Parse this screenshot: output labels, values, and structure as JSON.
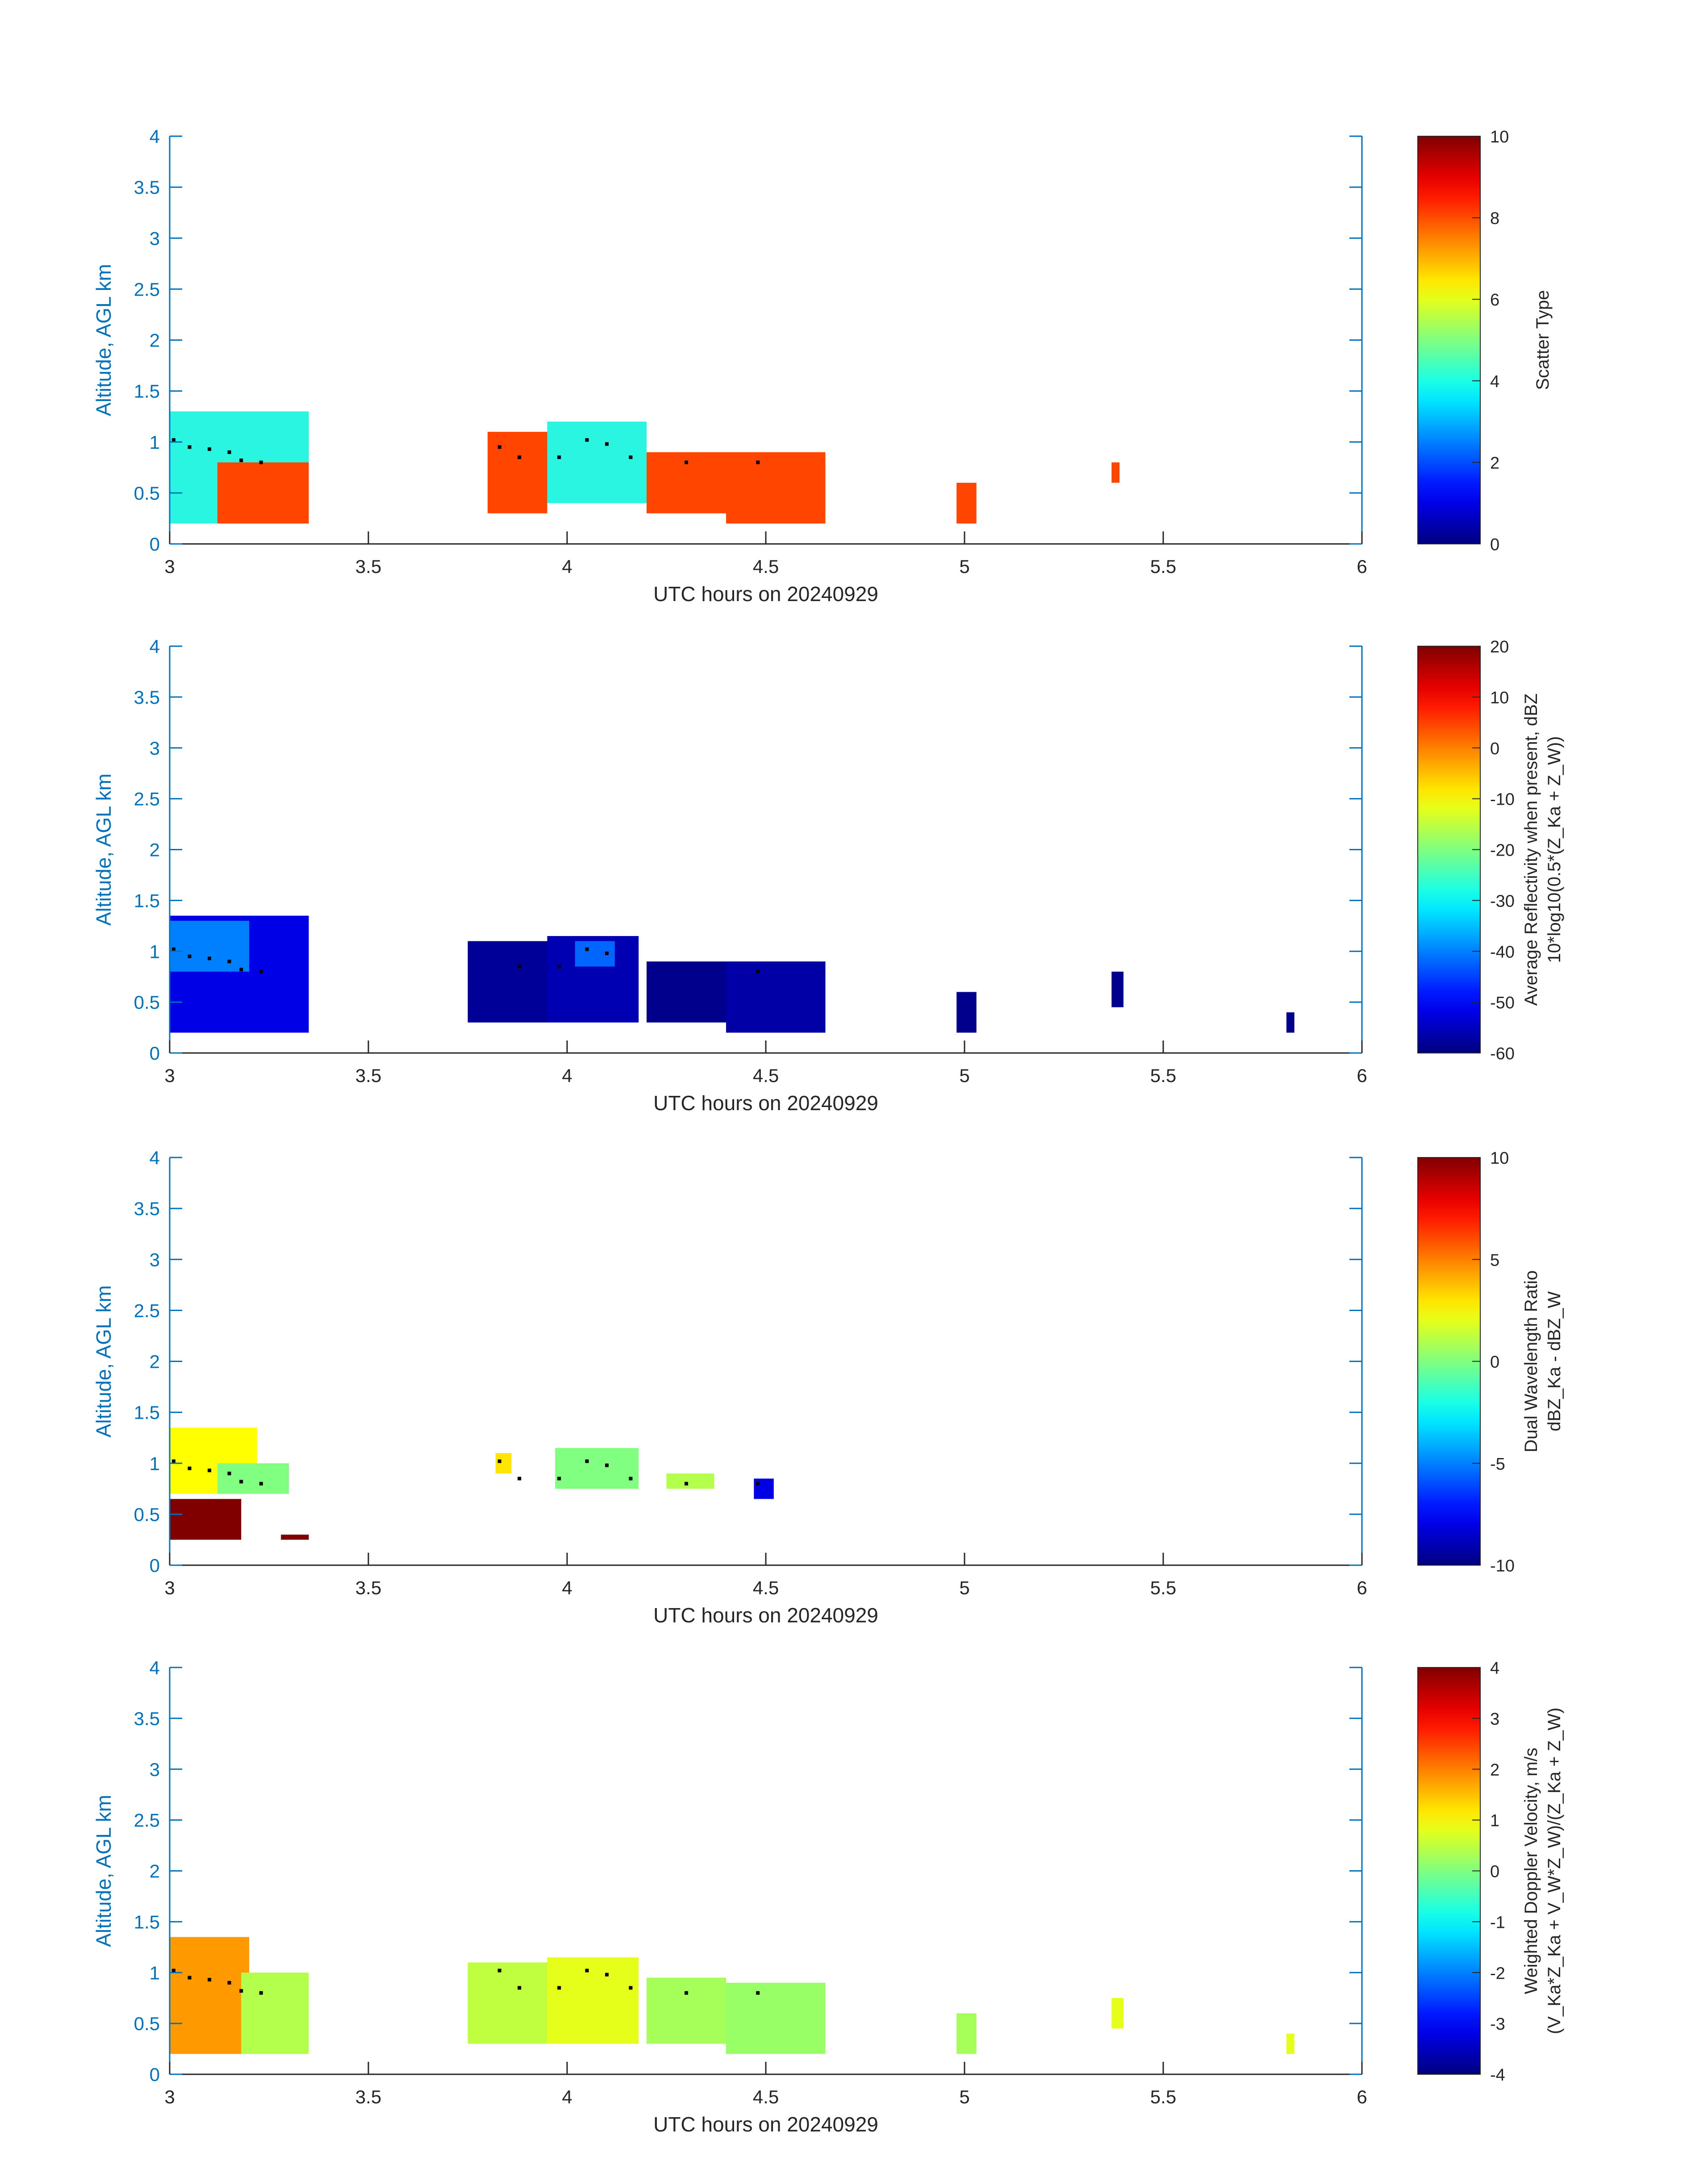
{
  "colors": {
    "axis": "#0072BD",
    "text": "#262626",
    "scatter_orange": "#FF4500",
    "scatter_cyan": "#2AF5E0",
    "dot": "#000000"
  },
  "chart_data": [
    {
      "type": "heatmap",
      "id": "scatter-type",
      "xlabel": "UTC hours on 20240929",
      "ylabel": "Altitude, AGL km",
      "xlim": [
        3,
        6
      ],
      "ylim": [
        0,
        4
      ],
      "xticks": [
        "3",
        "3.5",
        "4",
        "4.5",
        "5",
        "5.5",
        "6"
      ],
      "yticks": [
        "0",
        "0.5",
        "1",
        "1.5",
        "2",
        "2.5",
        "3",
        "3.5",
        "4"
      ],
      "colorbar": {
        "label_lines": [
          "Scatter Type"
        ],
        "clim": [
          0,
          10
        ],
        "ticks": [
          "0",
          "2",
          "4",
          "6",
          "8",
          "10"
        ]
      },
      "cells": [
        {
          "x0": 3.0,
          "x1": 3.35,
          "y0": 0.2,
          "y1": 1.3,
          "v": 3.8
        },
        {
          "x0": 3.12,
          "x1": 3.35,
          "y0": 0.2,
          "y1": 0.8,
          "v": 8.2
        },
        {
          "x0": 3.8,
          "x1": 3.95,
          "y0": 0.3,
          "y1": 1.1,
          "v": 8.2
        },
        {
          "x0": 3.95,
          "x1": 4.2,
          "y0": 0.4,
          "y1": 1.2,
          "v": 3.8
        },
        {
          "x0": 4.2,
          "x1": 4.4,
          "y0": 0.3,
          "y1": 0.9,
          "v": 8.2
        },
        {
          "x0": 4.4,
          "x1": 4.65,
          "y0": 0.2,
          "y1": 0.9,
          "v": 8.2
        },
        {
          "x0": 4.98,
          "x1": 5.03,
          "y0": 0.2,
          "y1": 0.6,
          "v": 8.2
        },
        {
          "x0": 5.37,
          "x1": 5.39,
          "y0": 0.6,
          "y1": 0.8,
          "v": 8.2
        }
      ],
      "dots": [
        [
          3.01,
          1.02
        ],
        [
          3.05,
          0.95
        ],
        [
          3.1,
          0.93
        ],
        [
          3.15,
          0.9
        ],
        [
          3.18,
          0.82
        ],
        [
          3.23,
          0.8
        ],
        [
          3.83,
          0.95
        ],
        [
          3.88,
          0.85
        ],
        [
          3.98,
          0.85
        ],
        [
          4.05,
          1.02
        ],
        [
          4.1,
          0.98
        ],
        [
          4.16,
          0.85
        ],
        [
          4.3,
          0.8
        ],
        [
          4.48,
          0.8
        ]
      ]
    },
    {
      "type": "heatmap",
      "id": "reflectivity",
      "xlabel": "UTC hours on 20240929",
      "ylabel": "Altitude, AGL km",
      "xlim": [
        3,
        6
      ],
      "ylim": [
        0,
        4
      ],
      "xticks": [
        "3",
        "3.5",
        "4",
        "4.5",
        "5",
        "5.5",
        "6"
      ],
      "yticks": [
        "0",
        "0.5",
        "1",
        "1.5",
        "2",
        "2.5",
        "3",
        "3.5",
        "4"
      ],
      "colorbar": {
        "label_lines": [
          "Average Reflectivity when present, dBZ",
          "10*log10(0.5*(Z_Ka + Z_W))"
        ],
        "clim": [
          -60,
          20
        ],
        "ticks": [
          "-60",
          "-50",
          "-40",
          "-30",
          "-20",
          "-10",
          "0",
          "10",
          "20"
        ]
      },
      "cells": [
        {
          "x0": 3.0,
          "x1": 3.35,
          "y0": 0.2,
          "y1": 1.35,
          "v": -52
        },
        {
          "x0": 3.0,
          "x1": 3.2,
          "y0": 0.8,
          "y1": 1.3,
          "v": -40
        },
        {
          "x0": 3.75,
          "x1": 3.95,
          "y0": 0.3,
          "y1": 1.1,
          "v": -58
        },
        {
          "x0": 3.95,
          "x1": 4.18,
          "y0": 0.3,
          "y1": 1.15,
          "v": -56
        },
        {
          "x0": 4.02,
          "x1": 4.12,
          "y0": 0.85,
          "y1": 1.1,
          "v": -42
        },
        {
          "x0": 4.2,
          "x1": 4.4,
          "y0": 0.3,
          "y1": 0.9,
          "v": -59
        },
        {
          "x0": 4.4,
          "x1": 4.65,
          "y0": 0.2,
          "y1": 0.9,
          "v": -57
        },
        {
          "x0": 4.98,
          "x1": 5.03,
          "y0": 0.2,
          "y1": 0.6,
          "v": -59
        },
        {
          "x0": 5.37,
          "x1": 5.4,
          "y0": 0.45,
          "y1": 0.8,
          "v": -59
        },
        {
          "x0": 5.81,
          "x1": 5.83,
          "y0": 0.2,
          "y1": 0.4,
          "v": -59
        }
      ],
      "dots": [
        [
          3.01,
          1.02
        ],
        [
          3.05,
          0.95
        ],
        [
          3.1,
          0.93
        ],
        [
          3.15,
          0.9
        ],
        [
          3.18,
          0.82
        ],
        [
          3.23,
          0.8
        ],
        [
          3.88,
          0.85
        ],
        [
          3.98,
          0.85
        ],
        [
          4.05,
          1.02
        ],
        [
          4.1,
          0.98
        ],
        [
          4.48,
          0.8
        ]
      ]
    },
    {
      "type": "heatmap",
      "id": "dual-wavelength-ratio",
      "xlabel": "UTC hours on 20240929",
      "ylabel": "Altitude, AGL km",
      "xlim": [
        3,
        6
      ],
      "ylim": [
        0,
        4
      ],
      "xticks": [
        "3",
        "3.5",
        "4",
        "4.5",
        "5",
        "5.5",
        "6"
      ],
      "yticks": [
        "0",
        "0.5",
        "1",
        "1.5",
        "2",
        "2.5",
        "3",
        "3.5",
        "4"
      ],
      "colorbar": {
        "label_lines": [
          "Dual Wavelength Ratio",
          "dBZ_Ka - dBZ_W"
        ],
        "clim": [
          -10,
          10
        ],
        "ticks": [
          "-10",
          "-5",
          "0",
          "5",
          "10"
        ]
      },
      "cells": [
        {
          "x0": 3.0,
          "x1": 3.22,
          "y0": 0.7,
          "y1": 1.35,
          "v": 2.5
        },
        {
          "x0": 3.12,
          "x1": 3.3,
          "y0": 0.7,
          "y1": 1.0,
          "v": 0
        },
        {
          "x0": 3.0,
          "x1": 3.18,
          "y0": 0.25,
          "y1": 0.65,
          "v": 10
        },
        {
          "x0": 3.28,
          "x1": 3.35,
          "y0": 0.25,
          "y1": 0.3,
          "v": 10
        },
        {
          "x0": 3.82,
          "x1": 3.86,
          "y0": 0.9,
          "y1": 1.1,
          "v": 3
        },
        {
          "x0": 3.97,
          "x1": 4.18,
          "y0": 0.75,
          "y1": 1.15,
          "v": 0
        },
        {
          "x0": 4.25,
          "x1": 4.37,
          "y0": 0.75,
          "y1": 0.9,
          "v": 1
        },
        {
          "x0": 4.47,
          "x1": 4.52,
          "y0": 0.65,
          "y1": 0.85,
          "v": -8
        }
      ],
      "dots": [
        [
          3.01,
          1.02
        ],
        [
          3.05,
          0.95
        ],
        [
          3.1,
          0.93
        ],
        [
          3.15,
          0.9
        ],
        [
          3.18,
          0.82
        ],
        [
          3.23,
          0.8
        ],
        [
          3.83,
          1.02
        ],
        [
          3.88,
          0.85
        ],
        [
          3.98,
          0.85
        ],
        [
          4.05,
          1.02
        ],
        [
          4.1,
          0.98
        ],
        [
          4.16,
          0.85
        ],
        [
          4.3,
          0.8
        ],
        [
          4.48,
          0.8
        ]
      ]
    },
    {
      "type": "heatmap",
      "id": "doppler-velocity",
      "xlabel": "UTC hours on 20240929",
      "ylabel": "Altitude, AGL km",
      "xlim": [
        3,
        6
      ],
      "ylim": [
        0,
        4
      ],
      "xticks": [
        "3",
        "3.5",
        "4",
        "4.5",
        "5",
        "5.5",
        "6"
      ],
      "yticks": [
        "0",
        "0.5",
        "1",
        "1.5",
        "2",
        "2.5",
        "3",
        "3.5",
        "4"
      ],
      "colorbar": {
        "label_lines": [
          "Weighted Doppler Velocity, m/s",
          "(V_Ka*Z_Ka + V_W*Z_W)/(Z_Ka + Z_W)"
        ],
        "clim": [
          -4,
          4
        ],
        "ticks": [
          "-4",
          "-3",
          "-2",
          "-1",
          "0",
          "1",
          "2",
          "3",
          "4"
        ]
      },
      "cells": [
        {
          "x0": 3.0,
          "x1": 3.2,
          "y0": 0.2,
          "y1": 1.35,
          "v": 1.8
        },
        {
          "x0": 3.18,
          "x1": 3.35,
          "y0": 0.2,
          "y1": 1.0,
          "v": 0.4
        },
        {
          "x0": 3.75,
          "x1": 3.95,
          "y0": 0.3,
          "y1": 1.1,
          "v": 0.5
        },
        {
          "x0": 3.95,
          "x1": 4.18,
          "y0": 0.3,
          "y1": 1.15,
          "v": 0.8
        },
        {
          "x0": 4.2,
          "x1": 4.4,
          "y0": 0.3,
          "y1": 0.95,
          "v": 0.3
        },
        {
          "x0": 4.4,
          "x1": 4.65,
          "y0": 0.2,
          "y1": 0.9,
          "v": 0.2
        },
        {
          "x0": 4.98,
          "x1": 5.03,
          "y0": 0.2,
          "y1": 0.6,
          "v": 0.3
        },
        {
          "x0": 5.37,
          "x1": 5.4,
          "y0": 0.45,
          "y1": 0.75,
          "v": 0.8
        },
        {
          "x0": 5.81,
          "x1": 5.83,
          "y0": 0.2,
          "y1": 0.4,
          "v": 0.8
        }
      ],
      "dots": [
        [
          3.01,
          1.02
        ],
        [
          3.05,
          0.95
        ],
        [
          3.1,
          0.93
        ],
        [
          3.15,
          0.9
        ],
        [
          3.18,
          0.82
        ],
        [
          3.23,
          0.8
        ],
        [
          3.83,
          1.02
        ],
        [
          3.88,
          0.85
        ],
        [
          3.98,
          0.85
        ],
        [
          4.05,
          1.02
        ],
        [
          4.1,
          0.98
        ],
        [
          4.16,
          0.85
        ],
        [
          4.3,
          0.8
        ],
        [
          4.48,
          0.8
        ]
      ]
    }
  ]
}
